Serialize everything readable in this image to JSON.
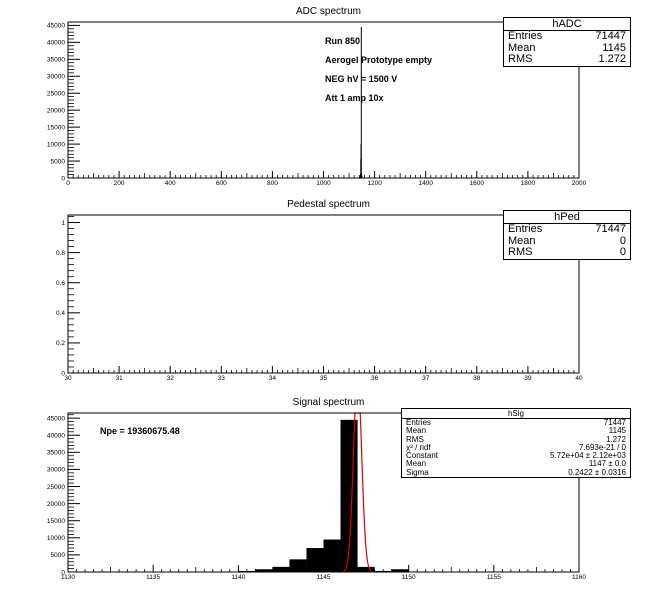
{
  "chart_data": [
    {
      "type": "bar",
      "title": "ADC spectrum",
      "xlabel": "",
      "ylabel": "",
      "xlim": [
        0,
        2000
      ],
      "ylim": [
        0,
        46000
      ],
      "x_ticks": [
        0,
        200,
        400,
        600,
        800,
        1000,
        1200,
        1400,
        1600,
        1800,
        2000
      ],
      "y_ticks": [
        0,
        5000,
        10000,
        15000,
        20000,
        25000,
        30000,
        35000,
        40000,
        45000
      ],
      "bins": [
        {
          "x": 1141,
          "y": 300
        },
        {
          "x": 1142,
          "y": 800
        },
        {
          "x": 1143,
          "y": 1200
        },
        {
          "x": 1144,
          "y": 5500
        },
        {
          "x": 1145,
          "y": 10000
        },
        {
          "x": 1146,
          "y": 44500
        },
        {
          "x": 1147,
          "y": 1500
        },
        {
          "x": 1149,
          "y": 500
        }
      ],
      "annotations": [
        "Run  850",
        "Aerogel Prototype empty",
        "NEG hV = 1500 V",
        "Att 1 amp 10x"
      ],
      "stats": {
        "name": "hADC",
        "rows": [
          {
            "label": "Entries",
            "value": "71447"
          },
          {
            "label": "Mean",
            "value": "1145"
          },
          {
            "label": "RMS",
            "value": "1.272"
          }
        ]
      }
    },
    {
      "type": "bar",
      "title": "Pedestal spectrum",
      "xlabel": "",
      "ylabel": "",
      "xlim": [
        30,
        40
      ],
      "ylim": [
        0,
        1.05
      ],
      "x_ticks": [
        30,
        31,
        32,
        33,
        34,
        35,
        36,
        37,
        38,
        39,
        40
      ],
      "y_ticks": [
        0,
        0.2,
        0.4,
        0.6,
        0.8,
        1
      ],
      "bins": [],
      "stats": {
        "name": "hPed",
        "rows": [
          {
            "label": "Entries",
            "value": "71447"
          },
          {
            "label": "Mean",
            "value": "0"
          },
          {
            "label": "RMS",
            "value": "0"
          }
        ]
      }
    },
    {
      "type": "bar",
      "title": "Signal spectrum",
      "xlabel": "",
      "ylabel": "",
      "xlim": [
        1130,
        1160
      ],
      "ylim": [
        0,
        46500
      ],
      "x_ticks": [
        1130,
        1135,
        1140,
        1145,
        1150,
        1155,
        1160
      ],
      "y_ticks": [
        0,
        5000,
        10000,
        15000,
        20000,
        25000,
        30000,
        35000,
        40000,
        45000
      ],
      "bins": [
        {
          "x": 1140,
          "y": 300
        },
        {
          "x": 1141,
          "y": 800
        },
        {
          "x": 1142,
          "y": 1500
        },
        {
          "x": 1143,
          "y": 3700
        },
        {
          "x": 1144,
          "y": 7000
        },
        {
          "x": 1145,
          "y": 9500
        },
        {
          "x": 1146,
          "y": 44500
        },
        {
          "x": 1147,
          "y": 1500
        },
        {
          "x": 1148,
          "y": 300
        },
        {
          "x": 1149,
          "y": 800
        }
      ],
      "fit": {
        "constant": 57200,
        "mean": 1147,
        "sigma": 0.2422
      },
      "annotations": [
        "Npe = 19360675.48"
      ],
      "stats": {
        "name": "hSig",
        "rows": [
          {
            "label": "Entries",
            "value": "71447"
          },
          {
            "label": "Mean",
            "value": "1145"
          },
          {
            "label": "RMS",
            "value": "1.272"
          },
          {
            "label": "χ² / ndf",
            "value": "7.693e-21 / 0"
          },
          {
            "label": "Constant",
            "value": "5.72e+04 ± 2.12e+03"
          },
          {
            "label": "Mean",
            "value": "1147 ± 0.0"
          },
          {
            "label": "Sigma",
            "value": "0.2422 ± 0.0316"
          }
        ]
      }
    }
  ],
  "colors": {
    "bars": "#000000",
    "fit": "#e00000",
    "frame": "#000000",
    "background": "#ffffff"
  }
}
